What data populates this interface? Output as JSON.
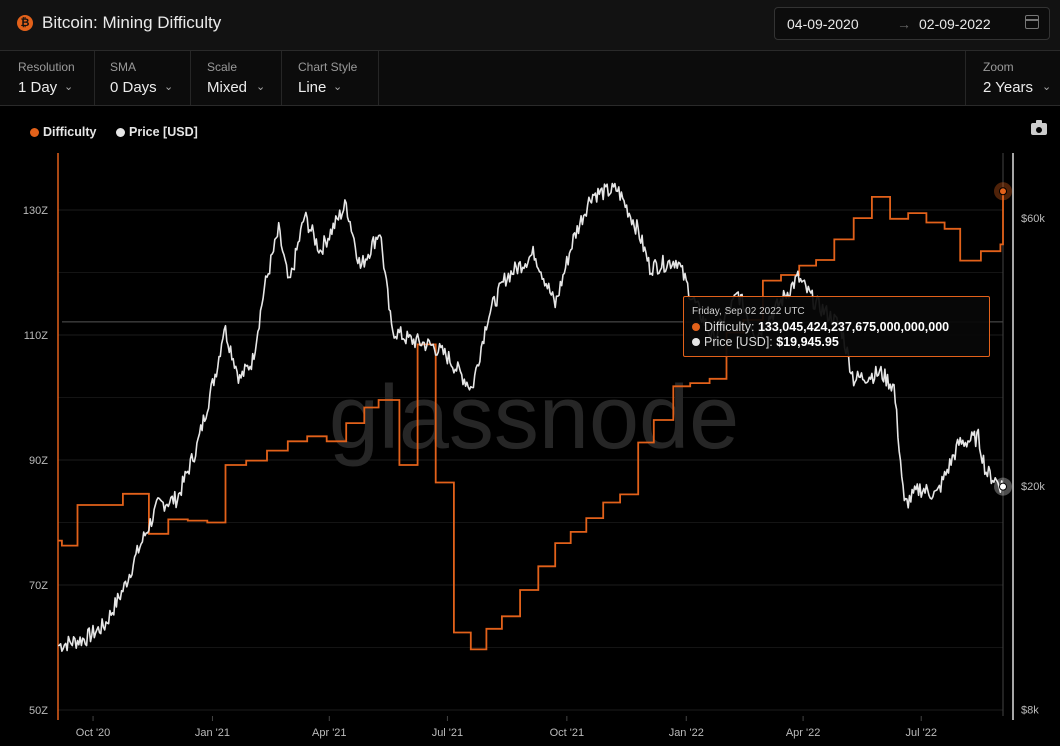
{
  "header": {
    "title": "Bitcoin: Mining Difficulty",
    "coin_symbol": "₿",
    "date_start": "04-09-2020",
    "date_arrow": "→",
    "date_end": "02-09-2022"
  },
  "controls": {
    "resolution": {
      "label": "Resolution",
      "value": "1 Day"
    },
    "sma": {
      "label": "SMA",
      "value": "0 Days"
    },
    "scale": {
      "label": "Scale",
      "value": "Mixed"
    },
    "chart_style": {
      "label": "Chart Style",
      "value": "Line"
    },
    "zoom": {
      "label": "Zoom",
      "value": "2 Years"
    }
  },
  "legend": {
    "difficulty": "Difficulty",
    "price": "Price [USD]"
  },
  "colors": {
    "difficulty": "#e2611a",
    "price": "#e6e6e6",
    "background": "#000000"
  },
  "watermark": "glassnode",
  "tooltip": {
    "date": "Friday, Sep 02 2022 UTC",
    "difficulty_label": "Difficulty:",
    "difficulty_value": "133,045,424,237,675,000,000,000",
    "price_label": "Price [USD]:",
    "price_value": "$19,945.95"
  },
  "chart_data": {
    "type": "line",
    "title": "Bitcoin: Mining Difficulty",
    "x_ticks": [
      "Oct '20",
      "Jan '21",
      "Apr '21",
      "Jul '21",
      "Oct '21",
      "Jan '22",
      "Apr '22",
      "Jul '22"
    ],
    "x_range": [
      "2020-09-04",
      "2022-09-02"
    ],
    "y_left": {
      "ticks": [
        "50Z",
        "70Z",
        "90Z",
        "110Z",
        "130Z"
      ],
      "range": [
        50,
        130
      ],
      "unit": "Z"
    },
    "y_right": {
      "ticks": [
        "$8k",
        "$20k",
        "$60k"
      ],
      "scale": "log",
      "range": [
        8000,
        60000
      ]
    },
    "legend_position": "top-left",
    "grid": true,
    "series": [
      {
        "name": "Difficulty",
        "axis": "left",
        "unit": "Z",
        "points": [
          [
            "2020-09-04",
            77.1
          ],
          [
            "2020-09-07",
            76.3
          ],
          [
            "2020-09-19",
            82.8
          ],
          [
            "2020-10-24",
            84.6
          ],
          [
            "2020-11-13",
            78.2
          ],
          [
            "2020-11-28",
            80.5
          ],
          [
            "2020-12-13",
            80.3
          ],
          [
            "2020-12-28",
            80.0
          ],
          [
            "2021-01-11",
            89.2
          ],
          [
            "2021-01-27",
            89.9
          ],
          [
            "2021-02-12",
            91.5
          ],
          [
            "2021-02-28",
            93.0
          ],
          [
            "2021-03-15",
            93.8
          ],
          [
            "2021-03-30",
            93.0
          ],
          [
            "2021-04-14",
            95.9
          ],
          [
            "2021-04-28",
            98.4
          ],
          [
            "2021-05-09",
            99.6
          ],
          [
            "2021-05-25",
            89.2
          ],
          [
            "2021-06-08",
            108.5
          ],
          [
            "2021-06-22",
            86.4
          ],
          [
            "2021-07-06",
            62.4
          ],
          [
            "2021-07-19",
            59.7
          ],
          [
            "2021-07-31",
            63.0
          ],
          [
            "2021-08-12",
            65.0
          ],
          [
            "2021-08-26",
            69.2
          ],
          [
            "2021-09-09",
            73.0
          ],
          [
            "2021-09-22",
            76.7
          ],
          [
            "2021-10-04",
            78.5
          ],
          [
            "2021-10-16",
            80.7
          ],
          [
            "2021-10-29",
            83.2
          ],
          [
            "2021-11-11",
            84.5
          ],
          [
            "2021-11-25",
            92.8
          ],
          [
            "2021-12-07",
            96.4
          ],
          [
            "2021-12-22",
            101.8
          ],
          [
            "2022-01-04",
            102.3
          ],
          [
            "2022-01-19",
            103.0
          ],
          [
            "2022-02-01",
            110.4
          ],
          [
            "2022-02-14",
            112.4
          ],
          [
            "2022-03-01",
            118.7
          ],
          [
            "2022-03-15",
            119.6
          ],
          [
            "2022-03-29",
            121.1
          ],
          [
            "2022-04-11",
            122.0
          ],
          [
            "2022-04-25",
            125.3
          ],
          [
            "2022-05-10",
            128.7
          ],
          [
            "2022-05-24",
            132.1
          ],
          [
            "2022-06-07",
            128.6
          ],
          [
            "2022-06-21",
            129.5
          ],
          [
            "2022-07-05",
            128.0
          ],
          [
            "2022-07-19",
            127.0
          ],
          [
            "2022-07-31",
            121.9
          ],
          [
            "2022-08-16",
            123.4
          ],
          [
            "2022-08-31",
            124.5
          ],
          [
            "2022-09-02",
            133.0
          ]
        ]
      },
      {
        "name": "Price [USD]",
        "axis": "right",
        "unit": "USD",
        "points": [
          [
            "2020-09-04",
            10400
          ],
          [
            "2020-09-25",
            10700
          ],
          [
            "2020-10-10",
            11300
          ],
          [
            "2020-10-25",
            13200
          ],
          [
            "2020-11-05",
            15400
          ],
          [
            "2020-11-20",
            18500
          ],
          [
            "2020-12-05",
            19000
          ],
          [
            "2020-12-20",
            23500
          ],
          [
            "2021-01-05",
            33000
          ],
          [
            "2021-01-10",
            38500
          ],
          [
            "2021-01-22",
            31000
          ],
          [
            "2021-02-01",
            33500
          ],
          [
            "2021-02-10",
            45000
          ],
          [
            "2021-02-21",
            57000
          ],
          [
            "2021-03-01",
            45500
          ],
          [
            "2021-03-13",
            60500
          ],
          [
            "2021-03-25",
            52500
          ],
          [
            "2021-04-14",
            63500
          ],
          [
            "2021-04-25",
            49000
          ],
          [
            "2021-05-10",
            57000
          ],
          [
            "2021-05-19",
            38000
          ],
          [
            "2021-06-01",
            36500
          ],
          [
            "2021-06-20",
            35500
          ],
          [
            "2021-07-01",
            34000
          ],
          [
            "2021-07-20",
            29800
          ],
          [
            "2021-08-01",
            40000
          ],
          [
            "2021-08-15",
            47000
          ],
          [
            "2021-09-06",
            52000
          ],
          [
            "2021-09-22",
            42000
          ],
          [
            "2021-10-06",
            55000
          ],
          [
            "2021-10-20",
            66000
          ],
          [
            "2021-11-09",
            67500
          ],
          [
            "2021-11-25",
            57000
          ],
          [
            "2021-12-04",
            49000
          ],
          [
            "2021-12-25",
            50500
          ],
          [
            "2022-01-05",
            43500
          ],
          [
            "2022-01-22",
            36500
          ],
          [
            "2022-02-10",
            44000
          ],
          [
            "2022-02-24",
            37000
          ],
          [
            "2022-03-28",
            47000
          ],
          [
            "2022-04-10",
            42500
          ],
          [
            "2022-04-30",
            38500
          ],
          [
            "2022-05-10",
            31000
          ],
          [
            "2022-05-31",
            31800
          ],
          [
            "2022-06-10",
            30000
          ],
          [
            "2022-06-18",
            18500
          ],
          [
            "2022-06-30",
            19800
          ],
          [
            "2022-07-13",
            19300
          ],
          [
            "2022-07-30",
            23800
          ],
          [
            "2022-08-14",
            24400
          ],
          [
            "2022-08-20",
            21200
          ],
          [
            "2022-09-02",
            19946
          ]
        ]
      }
    ],
    "annotations": [
      "Friday, Sep 02 2022 UTC"
    ]
  }
}
